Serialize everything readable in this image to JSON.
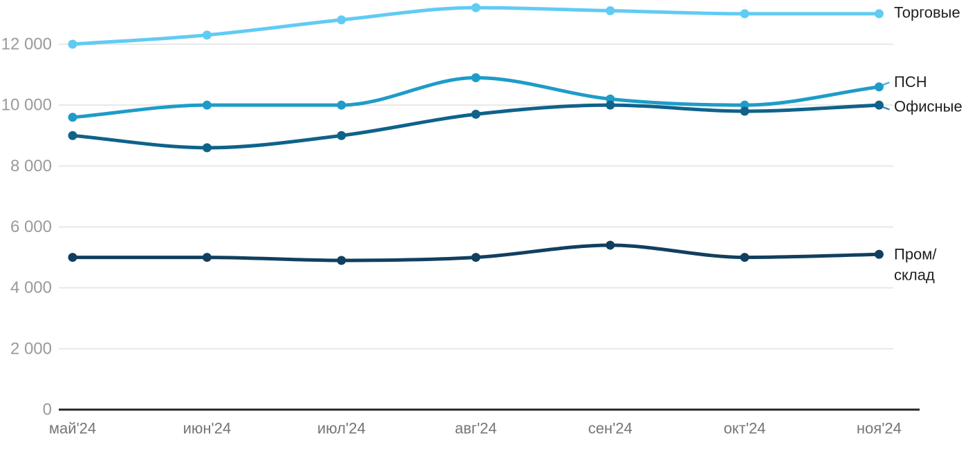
{
  "chart_data": {
    "type": "line",
    "title": "",
    "categories": [
      "май'24",
      "июн'24",
      "июл'24",
      "авг'24",
      "сен'24",
      "окт'24",
      "ноя'24"
    ],
    "series": [
      {
        "name": "Торговые",
        "label_lines": [
          "Торговые"
        ],
        "color": "#61CBF4",
        "values": [
          12000,
          12300,
          12800,
          13200,
          13100,
          13000,
          13000
        ]
      },
      {
        "name": "ПСН",
        "label_lines": [
          "ПСН"
        ],
        "color": "#1E9CC8",
        "values": [
          9600,
          10000,
          10000,
          10900,
          10200,
          10000,
          10600
        ]
      },
      {
        "name": "Офисные",
        "label_lines": [
          "Офисные"
        ],
        "color": "#0F628A",
        "values": [
          9000,
          8600,
          9000,
          9700,
          10000,
          9800,
          10000
        ]
      },
      {
        "name": "Пром/склад",
        "label_lines": [
          "Пром/",
          "склад"
        ],
        "color": "#123F5F",
        "values": [
          5000,
          5000,
          4900,
          5000,
          5400,
          5000,
          5100
        ]
      }
    ],
    "y_axis": {
      "range": [
        0,
        13450
      ],
      "grid": true,
      "ticks": [
        {
          "value": 0,
          "label": "0"
        },
        {
          "value": 2000,
          "label": "2 000"
        },
        {
          "value": 4000,
          "label": "4 000"
        },
        {
          "value": 6000,
          "label": "6 000"
        },
        {
          "value": 8000,
          "label": "8 000"
        },
        {
          "value": 10000,
          "label": "10 000"
        },
        {
          "value": 12000,
          "label": "12 000"
        }
      ]
    },
    "legend_position": "right-of-line-ends",
    "styles": {
      "grid_color": "#E8E8E8",
      "axis_color": "#262626",
      "y_label_color": "#9A9A9A",
      "x_label_color": "#757575",
      "series_label_color": "#1F1F1F"
    }
  }
}
